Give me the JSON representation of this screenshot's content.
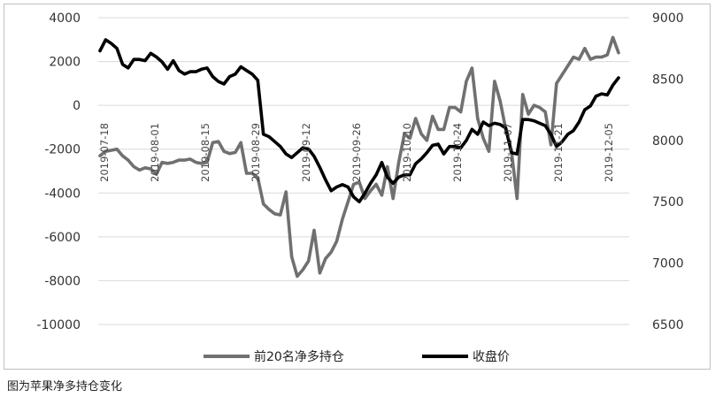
{
  "caption": "图为苹果净多持仓变化",
  "chart_data": {
    "type": "line",
    "x_tick_labels": [
      "2019-07-18",
      "2019-08-01",
      "2019-08-15",
      "2019-08-29",
      "2019-09-12",
      "2019-09-26",
      "2019-10-10",
      "2019-10-24",
      "2019-11-07",
      "2019-11-21",
      "2019-12-05"
    ],
    "y_left": {
      "min": -10000,
      "max": 4000,
      "ticks": [
        4000,
        2000,
        0,
        -2000,
        -4000,
        -6000,
        -8000,
        -10000
      ]
    },
    "y_right": {
      "min": 6500,
      "max": 9000,
      "ticks": [
        9000,
        8500,
        8000,
        7500,
        7000,
        6500
      ]
    },
    "series": [
      {
        "name": "前20名净多持仓",
        "axis": "left",
        "color": "#707070",
        "values": [
          -2300,
          -2100,
          -2050,
          -2000,
          -2300,
          -2500,
          -2800,
          -2950,
          -2850,
          -2900,
          -3150,
          -2600,
          -2650,
          -2600,
          -2500,
          -2500,
          -2450,
          -2600,
          -2650,
          -2600,
          -1700,
          -1650,
          -2100,
          -2200,
          -2150,
          -1700,
          -3100,
          -3100,
          -3300,
          -4500,
          -4750,
          -4950,
          -5000,
          -3950,
          -6900,
          -7800,
          -7500,
          -7100,
          -5700,
          -7650,
          -7000,
          -6700,
          -6200,
          -5200,
          -4400,
          -3600,
          -3500,
          -4250,
          -3900,
          -3600,
          -4100,
          -2800,
          -4250,
          -2600,
          -1300,
          -1500,
          -600,
          -1300,
          -1600,
          -500,
          -1100,
          -1100,
          -100,
          -100,
          -300,
          1100,
          1700,
          -600,
          -1500,
          -2100,
          1100,
          200,
          -1100,
          -2100,
          -4250,
          500,
          -400,
          0,
          -100,
          -300,
          -1800,
          1000,
          1400,
          1800,
          2200,
          2100,
          2600,
          2100,
          2200,
          2200,
          2300,
          3100,
          2400
        ]
      },
      {
        "name": "收盘价",
        "axis": "right",
        "color": "#000000",
        "values": [
          8730,
          8820,
          8790,
          8750,
          8620,
          8590,
          8660,
          8660,
          8650,
          8710,
          8680,
          8640,
          8580,
          8650,
          8570,
          8540,
          8560,
          8560,
          8580,
          8590,
          8520,
          8480,
          8460,
          8520,
          8540,
          8600,
          8570,
          8540,
          8490,
          8050,
          8030,
          7990,
          7950,
          7890,
          7860,
          7900,
          7940,
          7930,
          7870,
          7780,
          7680,
          7590,
          7620,
          7640,
          7620,
          7540,
          7500,
          7570,
          7650,
          7720,
          7820,
          7700,
          7650,
          7700,
          7720,
          7720,
          7810,
          7850,
          7900,
          7960,
          7970,
          7890,
          7950,
          7950,
          7940,
          8000,
          8090,
          8050,
          8150,
          8120,
          8140,
          8130,
          8100,
          7900,
          7890,
          8170,
          8170,
          8160,
          8140,
          8120,
          8050,
          7950,
          7990,
          8050,
          8080,
          8150,
          8250,
          8280,
          8360,
          8380,
          8370,
          8450,
          8510
        ]
      }
    ],
    "legend_position": "bottom",
    "grid": {
      "horizontal": true,
      "vertical": false
    }
  }
}
